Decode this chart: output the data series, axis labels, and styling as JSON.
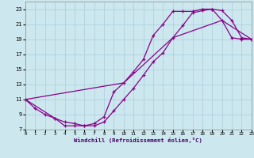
{
  "xlabel": "Windchill (Refroidissement éolien,°C)",
  "background_color": "#cce8ee",
  "grid_color": "#aaccdd",
  "line_color": "#880088",
  "xlim": [
    0,
    23
  ],
  "ylim": [
    7,
    24
  ],
  "yticks": [
    7,
    9,
    11,
    13,
    15,
    17,
    19,
    21,
    23
  ],
  "xticks": [
    0,
    1,
    2,
    3,
    4,
    5,
    6,
    7,
    8,
    9,
    10,
    11,
    12,
    13,
    14,
    15,
    16,
    17,
    18,
    19,
    20,
    21,
    22,
    23
  ],
  "line1_x": [
    0,
    1,
    2,
    3,
    4,
    5,
    6,
    7,
    8,
    9,
    10,
    11,
    12,
    13,
    14,
    15,
    16,
    17,
    18,
    19,
    20,
    21,
    22,
    23
  ],
  "line1_y": [
    11.0,
    9.8,
    9.0,
    8.5,
    7.5,
    7.5,
    7.5,
    7.8,
    8.7,
    12.0,
    13.2,
    14.7,
    16.3,
    19.5,
    21.0,
    22.7,
    22.7,
    22.7,
    23.0,
    23.0,
    21.5,
    19.2,
    19.0,
    19.0
  ],
  "line2_x": [
    0,
    3,
    4,
    5,
    6,
    7,
    8,
    9,
    10,
    11,
    12,
    13,
    14,
    15,
    16,
    17,
    18,
    19,
    20,
    21,
    22,
    23
  ],
  "line2_y": [
    11.0,
    8.5,
    8.0,
    7.8,
    7.5,
    7.5,
    8.0,
    9.5,
    11.0,
    12.5,
    14.2,
    16.0,
    17.2,
    19.2,
    20.8,
    22.5,
    22.8,
    23.0,
    22.8,
    21.5,
    19.2,
    19.0
  ],
  "line3_x": [
    0,
    10,
    15,
    20,
    23
  ],
  "line3_y": [
    11.0,
    13.2,
    19.2,
    21.5,
    19.0
  ]
}
